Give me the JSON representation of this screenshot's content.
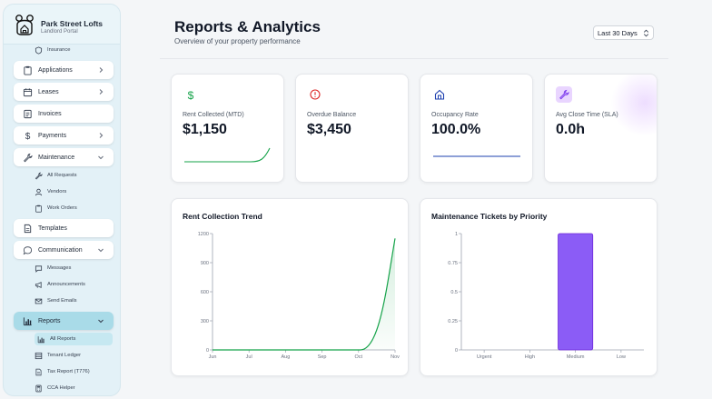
{
  "brand": {
    "name": "Park Street Lofts",
    "subtitle": "Landlord Portal"
  },
  "sidebar": {
    "items": [
      {
        "label": "Insurance",
        "icon": "shield-icon",
        "level": "sub"
      },
      {
        "label": "Applications",
        "icon": "clipboard-icon",
        "level": "top",
        "chevron": "right"
      },
      {
        "label": "Leases",
        "icon": "calendar-icon",
        "level": "top",
        "chevron": "right"
      },
      {
        "label": "Invoices",
        "icon": "invoice-icon",
        "level": "top"
      },
      {
        "label": "Payments",
        "icon": "dollar-icon",
        "level": "top",
        "chevron": "right"
      },
      {
        "label": "Maintenance",
        "icon": "wrench-icon",
        "level": "top",
        "chevron": "down"
      },
      {
        "label": "All Requests",
        "icon": "wrench-icon",
        "level": "sub"
      },
      {
        "label": "Vendors",
        "icon": "user-icon",
        "level": "sub"
      },
      {
        "label": "Work Orders",
        "icon": "clipboard-icon",
        "level": "sub"
      },
      {
        "label": "Templates",
        "icon": "document-icon",
        "level": "top"
      },
      {
        "label": "Communication",
        "icon": "chat-icon",
        "level": "top",
        "chevron": "down"
      },
      {
        "label": "Messages",
        "icon": "message-icon",
        "level": "sub"
      },
      {
        "label": "Announcements",
        "icon": "megaphone-icon",
        "level": "sub"
      },
      {
        "label": "Send Emails",
        "icon": "mail-icon",
        "level": "sub"
      },
      {
        "label": "Reports",
        "icon": "bar-chart-icon",
        "level": "top",
        "chevron": "down",
        "active": true
      },
      {
        "label": "All Reports",
        "icon": "bar-chart-icon",
        "level": "sub",
        "active": true
      },
      {
        "label": "Tenant Ledger",
        "icon": "table-icon",
        "level": "sub"
      },
      {
        "label": "Tax Report (T776)",
        "icon": "document-icon",
        "level": "sub"
      },
      {
        "label": "CCA Helper",
        "icon": "calculator-icon",
        "level": "sub"
      }
    ]
  },
  "header": {
    "title": "Reports & Analytics",
    "subtitle": "Overview of your property performance",
    "range": {
      "selected": "Last 30 Days"
    }
  },
  "kpis": [
    {
      "label": "Rent Collected (MTD)",
      "value": "$1,150",
      "icon": "dollar-icon",
      "color": "#16a34a"
    },
    {
      "label": "Overdue Balance",
      "value": "$3,450",
      "icon": "alert-circle-icon",
      "color": "#dc2626"
    },
    {
      "label": "Occupancy Rate",
      "value": "100.0%",
      "icon": "home-icon",
      "color": "#1e40af"
    },
    {
      "label": "Avg Close Time (SLA)",
      "value": "0.0h",
      "icon": "wrench-icon",
      "color": "#7c3aed"
    }
  ],
  "colors": {
    "accent": "#16a34a",
    "bar": "#8b5cf6",
    "active_nav": "#a9dbe8"
  },
  "chart_data": [
    {
      "type": "area",
      "title": "Rent Collection Trend",
      "categories": [
        "Jun",
        "Jul",
        "Aug",
        "Sep",
        "Oct",
        "Nov"
      ],
      "values": [
        0,
        0,
        0,
        0,
        0,
        1150
      ],
      "ylim": [
        0,
        1200
      ],
      "yticks": [
        "0",
        "300",
        "600",
        "900",
        "1200"
      ],
      "grid": false,
      "color": "#16a34a"
    },
    {
      "type": "bar",
      "title": "Maintenance Tickets by Priority",
      "categories": [
        "Urgent",
        "High",
        "Medium",
        "Low"
      ],
      "values": [
        0,
        0,
        1,
        0
      ],
      "ylim": [
        0,
        1
      ],
      "yticks": [
        "0",
        "0.25",
        "0.5",
        "0.75",
        "1"
      ],
      "grid": false,
      "color": "#8b5cf6"
    }
  ]
}
